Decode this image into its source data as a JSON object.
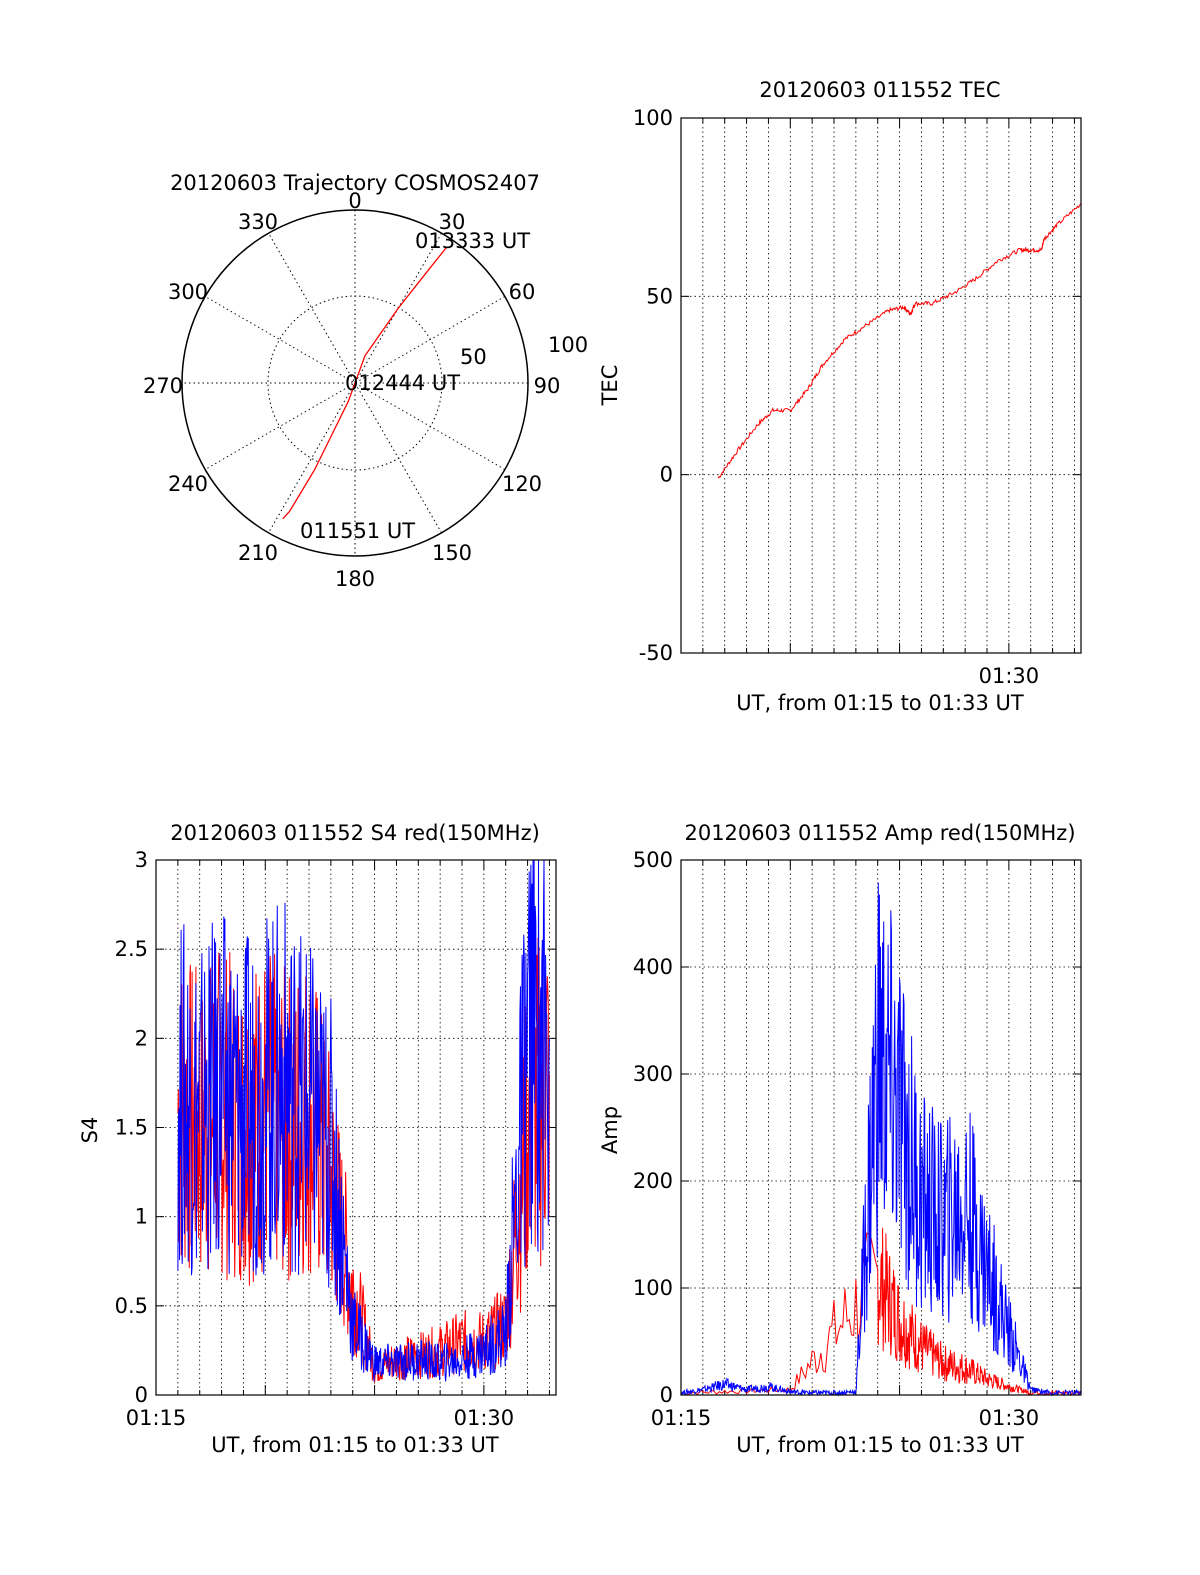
{
  "colors": {
    "red": "#ff0000",
    "blue": "#0000ff",
    "axis": "#000000",
    "grid": "#000000"
  },
  "chart_data": [
    {
      "id": "trajectory",
      "type": "polar",
      "title": "20120603 Trajectory COSMOS2407",
      "azimuth_labels": [
        "0",
        "30",
        "60",
        "90",
        "120",
        "150",
        "180",
        "210",
        "240",
        "270",
        "300",
        "330"
      ],
      "radial_labels": [
        "50",
        "100"
      ],
      "annotations": [
        "013333 UT",
        "012444 UT",
        "011551 UT"
      ],
      "series": [
        {
          "color": "red",
          "points": [
            {
              "az": 34,
              "el": 5
            },
            {
              "az": 33,
              "el": 20
            },
            {
              "az": 30,
              "el": 45
            },
            {
              "az": 20,
              "el": 75
            },
            {
              "az": 200,
              "el": 80
            },
            {
              "az": 205,
              "el": 40
            },
            {
              "az": 207,
              "el": 15
            },
            {
              "az": 208,
              "el": 10
            }
          ]
        }
      ]
    },
    {
      "id": "tec",
      "type": "line",
      "title": "20120603 011552 TEC",
      "xlabel": "UT, from 01:15 to 01:33 UT",
      "ylabel": "TEC",
      "xlim": [
        0,
        18.3
      ],
      "ylim": [
        -50,
        100
      ],
      "yticks": [
        "100",
        "50",
        "0",
        "-50"
      ],
      "xticks": [
        "01:30"
      ],
      "series": [
        {
          "color": "red",
          "points": [
            [
              1.7,
              -1
            ],
            [
              2.5,
              6
            ],
            [
              3.5,
              14
            ],
            [
              4.2,
              18
            ],
            [
              5.0,
              18
            ],
            [
              5.8,
              24
            ],
            [
              6.5,
              31
            ],
            [
              7.5,
              38
            ],
            [
              8.5,
              42
            ],
            [
              9.5,
              46
            ],
            [
              10.2,
              47
            ],
            [
              10.5,
              45
            ],
            [
              10.7,
              48
            ],
            [
              11.5,
              48
            ],
            [
              12.5,
              51
            ],
            [
              13.5,
              55
            ],
            [
              14.5,
              60
            ],
            [
              15.5,
              63
            ],
            [
              16.0,
              63
            ],
            [
              16.5,
              63
            ],
            [
              16.6,
              66
            ],
            [
              17.2,
              70
            ],
            [
              18.3,
              76
            ]
          ]
        }
      ]
    },
    {
      "id": "s4",
      "type": "line",
      "title": "20120603 011552 S4 red(150MHz)",
      "xlabel": "UT, from 01:15 to 01:33 UT",
      "ylabel": "S4",
      "xlim": [
        0,
        18.3
      ],
      "ylim": [
        0,
        3
      ],
      "yticks": [
        "3",
        "2.5",
        "2",
        "1.5",
        "1",
        "0.5",
        "0"
      ],
      "xticks": [
        "01:15",
        "01:30"
      ],
      "series": [
        {
          "color": "blue",
          "points": [
            [
              1.0,
              1.7
            ],
            [
              2.0,
              1.6
            ],
            [
              3.0,
              1.7
            ],
            [
              4.0,
              1.6
            ],
            [
              5.0,
              1.7
            ],
            [
              6.0,
              1.75
            ],
            [
              7.0,
              1.6
            ],
            [
              8.0,
              1.4
            ],
            [
              9.0,
              0.4
            ],
            [
              10.0,
              0.18
            ],
            [
              11.0,
              0.18
            ],
            [
              12.0,
              0.2
            ],
            [
              13.0,
              0.18
            ],
            [
              14.0,
              0.2
            ],
            [
              15.0,
              0.25
            ],
            [
              16.0,
              0.35
            ],
            [
              17.0,
              2.0
            ],
            [
              18.0,
              2.0
            ]
          ]
        },
        {
          "color": "red",
          "points": [
            [
              1.0,
              1.6
            ],
            [
              2.0,
              1.5
            ],
            [
              3.0,
              1.6
            ],
            [
              4.0,
              1.5
            ],
            [
              5.0,
              1.6
            ],
            [
              6.0,
              1.5
            ],
            [
              7.0,
              1.6
            ],
            [
              8.0,
              1.2
            ],
            [
              9.0,
              0.6
            ],
            [
              10.0,
              0.15
            ],
            [
              11.0,
              0.2
            ],
            [
              12.0,
              0.22
            ],
            [
              13.0,
              0.25
            ],
            [
              14.0,
              0.3
            ],
            [
              15.0,
              0.3
            ],
            [
              16.0,
              0.4
            ],
            [
              17.0,
              1.5
            ],
            [
              18.0,
              1.8
            ]
          ]
        }
      ]
    },
    {
      "id": "amp",
      "type": "line",
      "title": "20120603 011552 Amp red(150MHz)",
      "xlabel": "UT, from 01:15 to 01:33 UT",
      "ylabel": "Amp",
      "xlim": [
        0,
        18.3
      ],
      "ylim": [
        0,
        500
      ],
      "yticks": [
        "500",
        "400",
        "300",
        "200",
        "100",
        "0"
      ],
      "xticks": [
        "01:15",
        "01:30"
      ],
      "series": [
        {
          "color": "blue",
          "points": [
            [
              0,
              2
            ],
            [
              1.0,
              5
            ],
            [
              2.0,
              10
            ],
            [
              3.0,
              5
            ],
            [
              4.0,
              8
            ],
            [
              5.0,
              3
            ],
            [
              6.0,
              2
            ],
            [
              7.0,
              2
            ],
            [
              8.0,
              3
            ],
            [
              9.0,
              320
            ],
            [
              10.0,
              260
            ],
            [
              11.0,
              180
            ],
            [
              12.0,
              160
            ],
            [
              13.0,
              180
            ],
            [
              14.0,
              120
            ],
            [
              15.0,
              60
            ],
            [
              16.0,
              5
            ],
            [
              17.0,
              2
            ],
            [
              18.3,
              2
            ]
          ]
        },
        {
          "color": "red",
          "points": [
            [
              0,
              2
            ],
            [
              5.0,
              5
            ],
            [
              9.0,
              110
            ],
            [
              10.0,
              70
            ],
            [
              11.0,
              45
            ],
            [
              12.0,
              30
            ],
            [
              13.0,
              25
            ],
            [
              14.0,
              15
            ],
            [
              15.0,
              8
            ],
            [
              16.0,
              2
            ],
            [
              18.3,
              2
            ]
          ]
        }
      ]
    }
  ]
}
